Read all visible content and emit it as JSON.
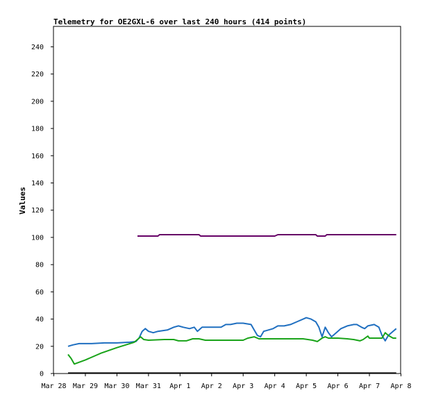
{
  "chart_data": {
    "type": "line",
    "title": "Telemetry for OE2GXL-6 over last 240 hours (414 points)",
    "xlabel": "",
    "ylabel": "Values",
    "xlim": [
      "Mar 28",
      "Apr 8"
    ],
    "ylim": [
      0,
      255
    ],
    "x_ticks": [
      "Mar 28",
      "Mar 29",
      "Mar 30",
      "Mar 31",
      "Apr 1",
      "Apr 2",
      "Apr 3",
      "Apr 4",
      "Apr 5",
      "Apr 6",
      "Apr 7",
      "Apr 8"
    ],
    "x_tick_positions_days": [
      0,
      1,
      2,
      3,
      4,
      5,
      6,
      7,
      8,
      9,
      10,
      11
    ],
    "y_ticks": [
      0,
      20,
      40,
      60,
      80,
      100,
      120,
      140,
      160,
      180,
      200,
      220,
      240
    ],
    "grid": false,
    "legend": "none",
    "colors": {
      "purple": "#660066",
      "blue": "#1f6fc0",
      "green": "#19a319",
      "black": "#000000"
    },
    "series": [
      {
        "color": "#660066",
        "points": [
          [
            2.65,
            101
          ],
          [
            3.3,
            101
          ],
          [
            3.35,
            102
          ],
          [
            4.6,
            102
          ],
          [
            4.65,
            101
          ],
          [
            5.0,
            101
          ],
          [
            6.0,
            101
          ],
          [
            7.0,
            101
          ],
          [
            7.1,
            102
          ],
          [
            8.3,
            102
          ],
          [
            8.35,
            101
          ],
          [
            8.6,
            101
          ],
          [
            8.65,
            102
          ],
          [
            9.5,
            102
          ],
          [
            10.5,
            102
          ],
          [
            10.85,
            102
          ]
        ]
      },
      {
        "color": "#1f6fc0",
        "points": [
          [
            0.45,
            20
          ],
          [
            0.6,
            21
          ],
          [
            0.8,
            22
          ],
          [
            1.2,
            22
          ],
          [
            1.6,
            22.5
          ],
          [
            2.0,
            22.5
          ],
          [
            2.4,
            23
          ],
          [
            2.6,
            23.5
          ],
          [
            2.7,
            26
          ],
          [
            2.8,
            31
          ],
          [
            2.9,
            33
          ],
          [
            3.0,
            31
          ],
          [
            3.15,
            30
          ],
          [
            3.3,
            31
          ],
          [
            3.6,
            32
          ],
          [
            3.8,
            34
          ],
          [
            3.95,
            35
          ],
          [
            4.1,
            34
          ],
          [
            4.3,
            33
          ],
          [
            4.45,
            34
          ],
          [
            4.55,
            31
          ],
          [
            4.7,
            34
          ],
          [
            5.3,
            34
          ],
          [
            5.45,
            36
          ],
          [
            5.6,
            36
          ],
          [
            5.8,
            37
          ],
          [
            6.0,
            37
          ],
          [
            6.25,
            36
          ],
          [
            6.35,
            32
          ],
          [
            6.45,
            28
          ],
          [
            6.55,
            27
          ],
          [
            6.65,
            31
          ],
          [
            6.8,
            32
          ],
          [
            6.95,
            33
          ],
          [
            7.1,
            35
          ],
          [
            7.3,
            35
          ],
          [
            7.5,
            36
          ],
          [
            7.7,
            38
          ],
          [
            7.9,
            40
          ],
          [
            8.0,
            41
          ],
          [
            8.15,
            40
          ],
          [
            8.3,
            38
          ],
          [
            8.4,
            34
          ],
          [
            8.5,
            27
          ],
          [
            8.6,
            34
          ],
          [
            8.7,
            30
          ],
          [
            8.8,
            27
          ],
          [
            8.95,
            30
          ],
          [
            9.1,
            33
          ],
          [
            9.3,
            35
          ],
          [
            9.5,
            36
          ],
          [
            9.6,
            36
          ],
          [
            9.75,
            34
          ],
          [
            9.85,
            33
          ],
          [
            9.95,
            35
          ],
          [
            10.15,
            36
          ],
          [
            10.3,
            34
          ],
          [
            10.4,
            28
          ],
          [
            10.5,
            24
          ],
          [
            10.6,
            28
          ],
          [
            10.75,
            31
          ],
          [
            10.85,
            33
          ]
        ]
      },
      {
        "color": "#19a319",
        "points": [
          [
            0.45,
            14
          ],
          [
            0.55,
            11
          ],
          [
            0.65,
            7
          ],
          [
            1.0,
            10
          ],
          [
            1.5,
            15
          ],
          [
            2.0,
            19
          ],
          [
            2.55,
            23
          ],
          [
            2.65,
            25
          ],
          [
            2.75,
            27
          ],
          [
            2.85,
            25
          ],
          [
            3.0,
            24.5
          ],
          [
            3.5,
            25
          ],
          [
            3.8,
            25
          ],
          [
            3.95,
            24
          ],
          [
            4.2,
            24
          ],
          [
            4.4,
            25.5
          ],
          [
            4.6,
            25.5
          ],
          [
            4.8,
            24.5
          ],
          [
            5.2,
            24.5
          ],
          [
            5.6,
            24.5
          ],
          [
            6.0,
            24.5
          ],
          [
            6.15,
            26
          ],
          [
            6.35,
            27
          ],
          [
            6.5,
            25.5
          ],
          [
            7.0,
            25.5
          ],
          [
            7.5,
            25.5
          ],
          [
            7.9,
            25.5
          ],
          [
            8.2,
            24.5
          ],
          [
            8.35,
            23.5
          ],
          [
            8.5,
            26
          ],
          [
            8.6,
            27
          ],
          [
            8.7,
            26
          ],
          [
            9.0,
            26
          ],
          [
            9.3,
            25.5
          ],
          [
            9.5,
            25
          ],
          [
            9.7,
            24
          ],
          [
            9.8,
            25
          ],
          [
            9.95,
            27.5
          ],
          [
            10.0,
            26
          ],
          [
            10.2,
            26
          ],
          [
            10.4,
            26
          ],
          [
            10.5,
            30
          ],
          [
            10.6,
            28
          ],
          [
            10.75,
            26
          ],
          [
            10.85,
            26
          ]
        ]
      },
      {
        "color": "#000000",
        "points": [
          [
            0.45,
            0.3
          ],
          [
            10.85,
            0.3
          ]
        ]
      }
    ]
  }
}
